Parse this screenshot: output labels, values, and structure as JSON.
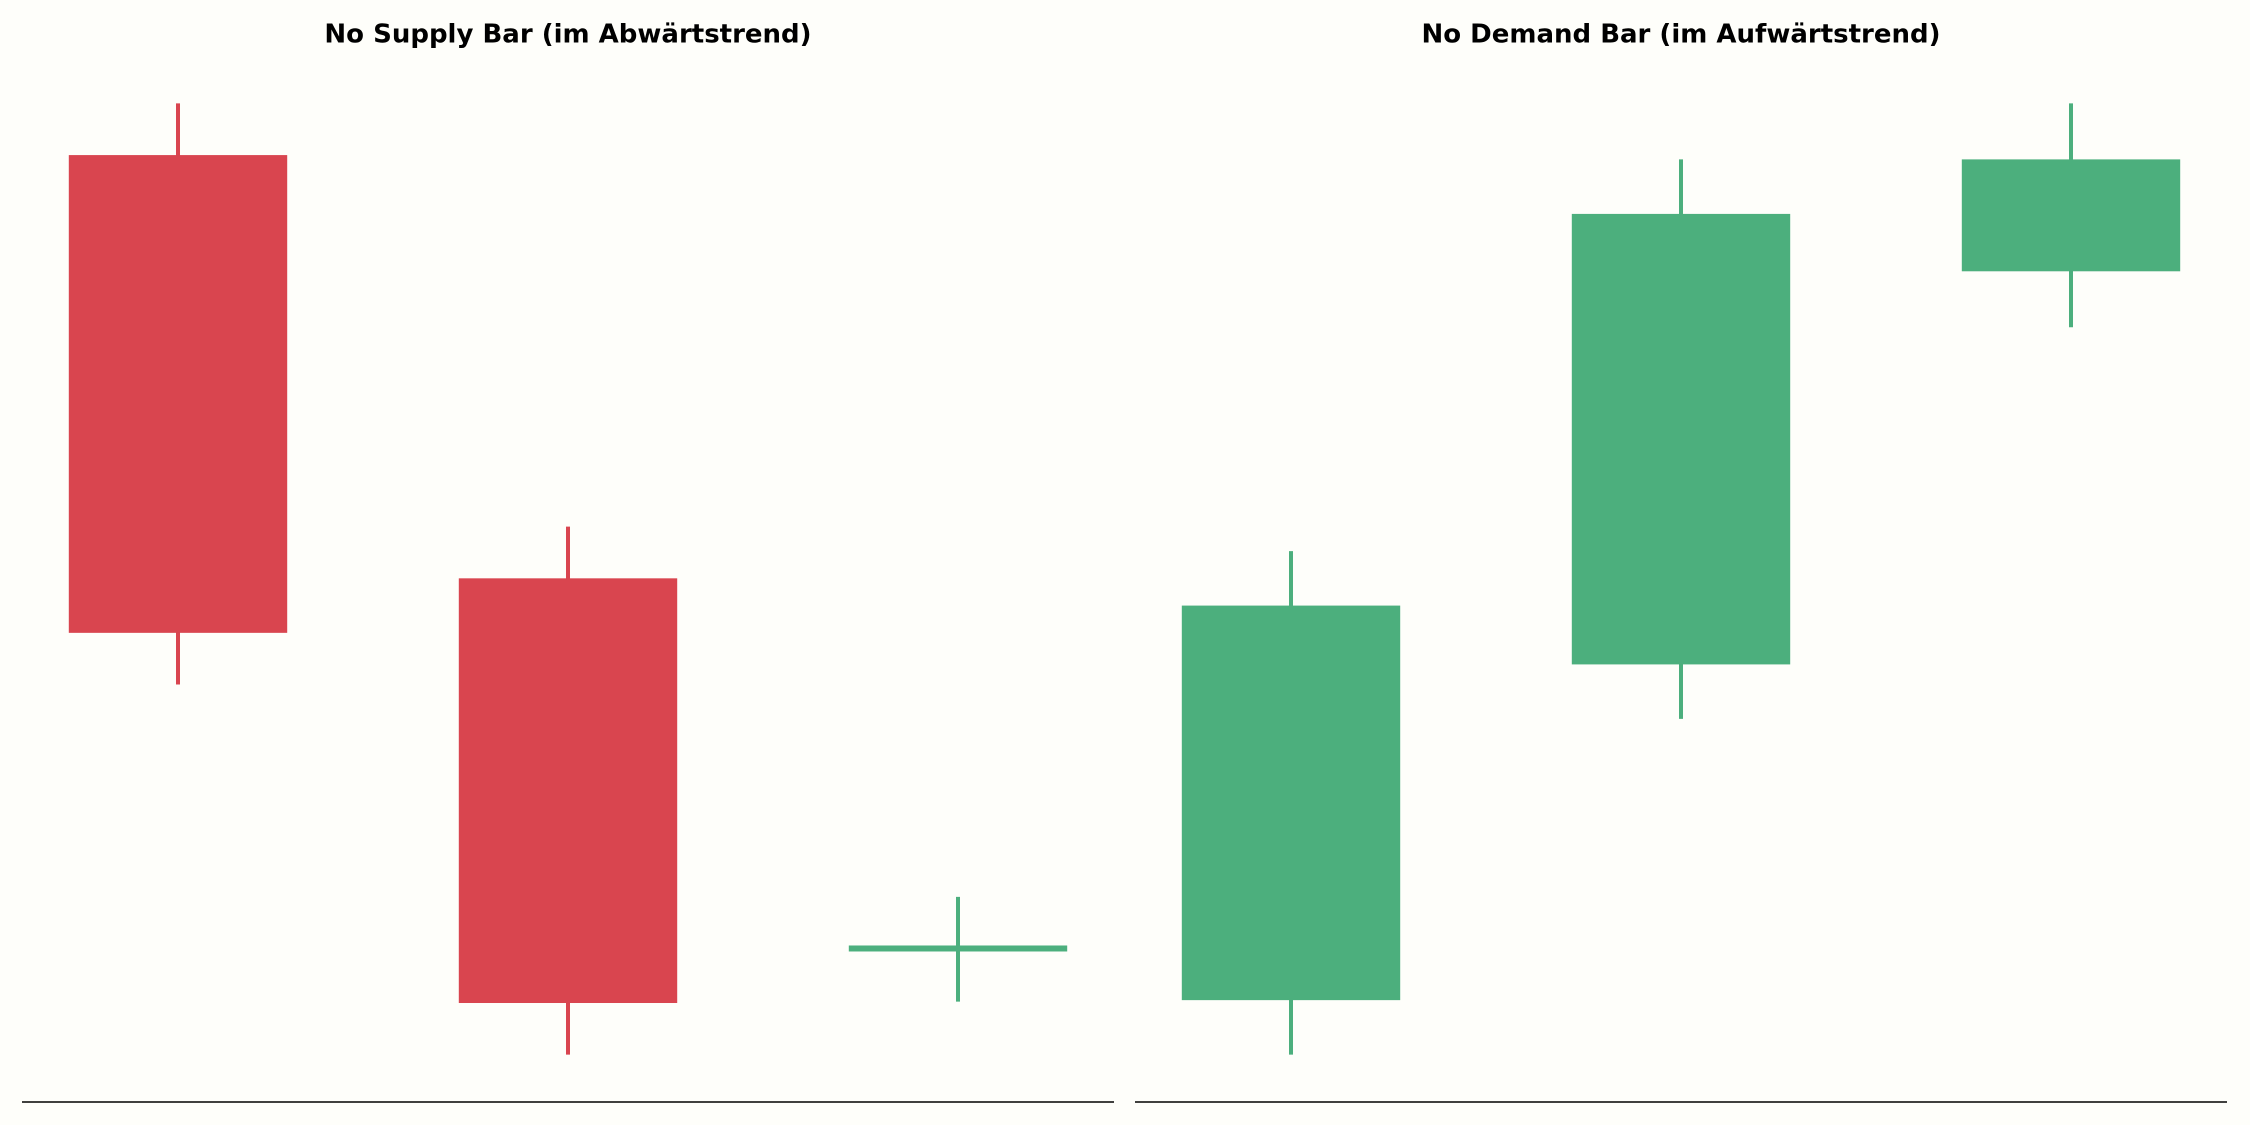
{
  "chart_data": [
    {
      "type": "candlestick",
      "title": "No Supply Bar (im Abwärtstrend)",
      "open": [
        66,
        36.5,
        10.7
      ],
      "high": [
        69.6,
        40.1,
        14.3
      ],
      "low": [
        29.1,
        3.3,
        7
      ],
      "close": [
        32.7,
        6.9,
        10.7
      ],
      "up_color": "#4caf7d",
      "down_color": "#d9454f",
      "ylim": [
        0,
        72
      ]
    },
    {
      "type": "candlestick",
      "title": "No Demand Bar (im Aufwärtstrend)",
      "open": [
        7.1,
        30.5,
        57.9
      ],
      "high": [
        38.4,
        65.7,
        69.6
      ],
      "low": [
        3.3,
        26.7,
        54
      ],
      "close": [
        34.6,
        61.9,
        65.7
      ],
      "up_color": "#4caf7d",
      "down_color": "#d9454f",
      "ylim": [
        0,
        72
      ]
    }
  ]
}
